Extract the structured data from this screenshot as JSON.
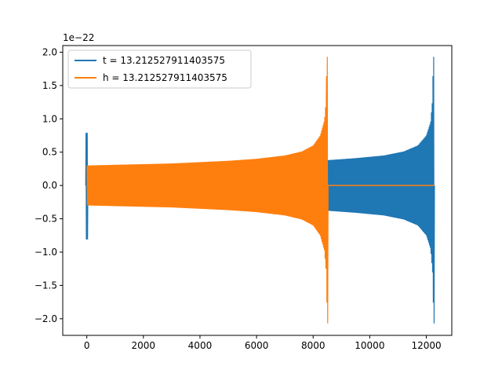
{
  "chart_data": {
    "type": "line",
    "title": "",
    "xlabel": "",
    "ylabel": "",
    "y_offset_text": "1e−22",
    "xlim": [
      -850,
      12900
    ],
    "ylim": [
      -2.25,
      2.1
    ],
    "x_ticks": [
      0,
      2000,
      4000,
      6000,
      8000,
      10000,
      12000
    ],
    "x_tick_labels": [
      "0",
      "2000",
      "4000",
      "6000",
      "8000",
      "10000",
      "12000"
    ],
    "y_ticks": [
      -2.0,
      -1.5,
      -1.0,
      -0.5,
      0.0,
      0.5,
      1.0,
      1.5,
      2.0
    ],
    "y_tick_labels": [
      "−2.0",
      "−1.5",
      "−1.0",
      "−0.5",
      "0.0",
      "0.5",
      "1.0",
      "1.5",
      "2.0"
    ],
    "grid": false,
    "legend_position": "top-left",
    "series": [
      {
        "name": "t = 13.212527911403575",
        "color": "#1f77b4",
        "start_spike": {
          "x": 0,
          "y_max": 0.79,
          "y_min": -0.81
        },
        "envelope": [
          {
            "x": 8520,
            "amp": 0.38
          },
          {
            "x": 9500,
            "amp": 0.41
          },
          {
            "x": 10500,
            "amp": 0.45
          },
          {
            "x": 11200,
            "amp": 0.51
          },
          {
            "x": 11700,
            "amp": 0.6
          },
          {
            "x": 12000,
            "amp": 0.75
          },
          {
            "x": 12150,
            "amp": 0.95
          },
          {
            "x": 12230,
            "amp": 1.35
          }
        ],
        "merger_peak": {
          "x": 12260,
          "y_max": 1.93,
          "y_min": -2.07
        },
        "end_x": 12280
      },
      {
        "name": "h = 13.212527911403575",
        "color": "#ff7f0e",
        "start_spike": {
          "x": 0,
          "y_max": 0.0,
          "y_min": 0.0
        },
        "envelope": [
          {
            "x": 0,
            "amp": 0.3
          },
          {
            "x": 1000,
            "amp": 0.31
          },
          {
            "x": 2000,
            "amp": 0.32
          },
          {
            "x": 3000,
            "amp": 0.33
          },
          {
            "x": 4000,
            "amp": 0.35
          },
          {
            "x": 5000,
            "amp": 0.37
          },
          {
            "x": 6000,
            "amp": 0.4
          },
          {
            "x": 7000,
            "amp": 0.45
          },
          {
            "x": 7600,
            "amp": 0.51
          },
          {
            "x": 8000,
            "amp": 0.6
          },
          {
            "x": 8250,
            "amp": 0.75
          },
          {
            "x": 8400,
            "amp": 0.98
          },
          {
            "x": 8470,
            "amp": 1.35
          }
        ],
        "merger_peak": {
          "x": 8500,
          "y_max": 1.93,
          "y_min": -2.07
        },
        "flat_after": {
          "x_start": 8520,
          "x_end": 12280,
          "y": 0.0
        }
      }
    ]
  }
}
